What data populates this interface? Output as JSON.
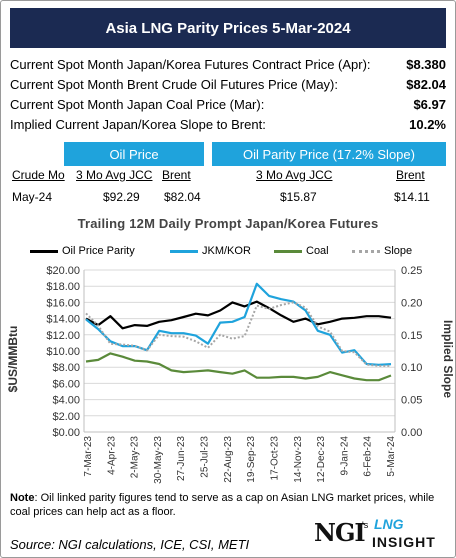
{
  "header": {
    "title": "Asia LNG Parity Prices 5-Mar-2024"
  },
  "summary": [
    {
      "label": "Current Spot Month Japan/Korea Futures Contract Price (Apr):",
      "value": "$8.380"
    },
    {
      "label": "Current Spot Month Brent Crude Oil Futures Price (May):",
      "value": "$82.04"
    },
    {
      "label": "Current Spot Month Japan Coal Price (Mar):",
      "value": "$6.97"
    },
    {
      "label": "Implied Current Japan/Korea Slope to Brent:",
      "value": "10.2%"
    }
  ],
  "tabs": {
    "oil_price": "Oil Price",
    "oil_parity": "Oil Parity Price (17.2% Slope)"
  },
  "table": {
    "headers": {
      "crude_mo": "Crude Mo",
      "avg_jcc_1": "3 Mo Avg JCC",
      "brent_1": "Brent",
      "avg_jcc_2": "3 Mo Avg JCC",
      "brent_2": "Brent"
    },
    "row": {
      "crude_mo": "May-24",
      "avg_jcc_1": "$92.29",
      "brent_1": "$82.04",
      "avg_jcc_2": "$15.87",
      "brent_2": "$14.11"
    }
  },
  "chart_data": {
    "type": "line",
    "title": "Trailing 12M Daily Prompt Japan/Korea Futures",
    "ylabel": "$US/MMBtu",
    "y2label": "Implied Slope",
    "ylim": [
      0,
      20
    ],
    "y2lim": [
      0,
      0.25
    ],
    "yticks": [
      "$0.00",
      "$2.00",
      "$4.00",
      "$6.00",
      "$8.00",
      "$10.00",
      "$12.00",
      "$14.00",
      "$16.00",
      "$18.00",
      "$20.00"
    ],
    "y2ticks": [
      "0.00",
      "0.05",
      "0.10",
      "0.15",
      "0.20",
      "0.25"
    ],
    "grid": true,
    "legend_position": "top",
    "x_labels": [
      "7-Mar-23",
      "4-Apr-23",
      "2-May-23",
      "30-May-23",
      "27-Jun-23",
      "25-Jul-23",
      "22-Aug-23",
      "19-Sep-23",
      "17-Oct-23",
      "14-Nov-23",
      "12-Dec-23",
      "9-Jan-24",
      "6-Feb-24",
      "5-Mar-24"
    ],
    "series": [
      {
        "name": "Oil Price Parity",
        "color": "#000000",
        "axis": "left",
        "values": [
          14.0,
          13.2,
          14.3,
          12.8,
          13.2,
          13.1,
          13.6,
          13.8,
          14.2,
          14.6,
          14.4,
          15.0,
          16.0,
          15.5,
          16.1,
          15.3,
          14.4,
          13.6,
          14.0,
          13.3,
          13.6,
          14.0,
          14.1,
          14.3,
          14.3,
          14.11
        ]
      },
      {
        "name": "JKM/KOR",
        "color": "#1fa3dc",
        "axis": "left",
        "values": [
          13.9,
          12.7,
          11.2,
          10.6,
          10.6,
          10.1,
          12.5,
          12.2,
          12.2,
          11.9,
          10.9,
          13.5,
          13.6,
          14.2,
          18.3,
          16.8,
          16.4,
          16.1,
          15.0,
          12.5,
          12.0,
          9.8,
          10.1,
          8.4,
          8.3,
          8.38
        ]
      },
      {
        "name": "Coal",
        "color": "#5a8a3a",
        "axis": "left",
        "values": [
          8.7,
          8.9,
          9.7,
          9.3,
          8.8,
          8.7,
          8.4,
          7.6,
          7.4,
          7.5,
          7.6,
          7.4,
          7.2,
          7.6,
          6.7,
          6.7,
          6.8,
          6.8,
          6.6,
          6.8,
          7.4,
          7.0,
          6.6,
          6.4,
          6.4,
          6.97
        ]
      },
      {
        "name": "Slope",
        "color": "#a6a6a6",
        "axis": "right",
        "values": [
          0.183,
          0.164,
          0.136,
          0.135,
          0.133,
          0.126,
          0.15,
          0.148,
          0.147,
          0.14,
          0.13,
          0.15,
          0.144,
          0.148,
          0.195,
          0.19,
          0.196,
          0.2,
          0.192,
          0.163,
          0.155,
          0.125,
          0.123,
          0.104,
          0.102,
          0.102
        ]
      }
    ]
  },
  "footer": {
    "note_label": "Note",
    "note_text": ": Oil linked parity figures tend to serve as a cap on Asian LNG market prices, while coal prices can help act as a floor.",
    "source": "Source: NGI calculations, ICE, CSI, METI",
    "logo": {
      "ngi": "NGI",
      "sup": "'s",
      "lng": "LNG",
      "insight": "INSIGHT"
    }
  }
}
